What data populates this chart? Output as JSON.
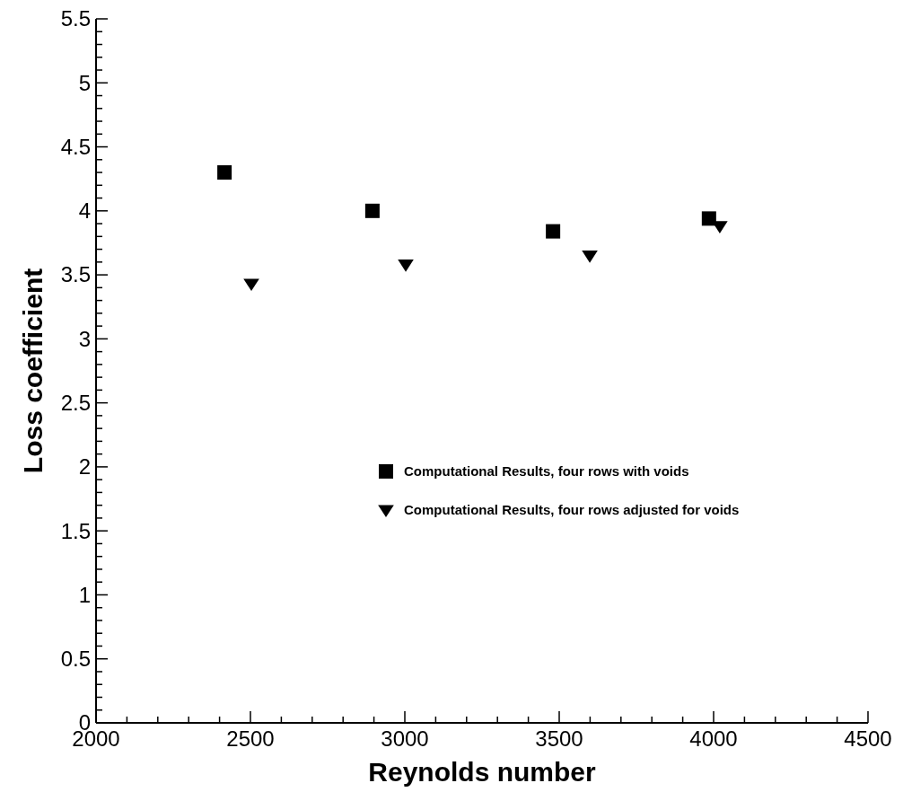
{
  "chart_data": {
    "type": "scatter",
    "xlabel": "Reynolds number",
    "ylabel": "Loss coefficient",
    "xlim": [
      2000,
      4500
    ],
    "ylim": [
      0,
      5.5
    ],
    "xticks": [
      2000,
      {
        "value": 2100,
        "label": null
      },
      {
        "value": 2200,
        "label": null
      },
      {
        "value": 2300,
        "label": null
      },
      {
        "value": 2400,
        "label": null
      },
      2500,
      {
        "value": 2600,
        "label": null
      },
      {
        "value": 2700,
        "label": null
      },
      {
        "value": 2800,
        "label": null
      },
      {
        "value": 2900,
        "label": null
      },
      3000,
      {
        "value": 3100,
        "label": null
      },
      {
        "value": 3200,
        "label": null
      },
      {
        "value": 3300,
        "label": null
      },
      {
        "value": 3400,
        "label": null
      },
      3500,
      {
        "value": 3600,
        "label": null
      },
      {
        "value": 3700,
        "label": null
      },
      {
        "value": 3800,
        "label": null
      },
      {
        "value": 3900,
        "label": null
      },
      4000,
      {
        "value": 4100,
        "label": null
      },
      {
        "value": 4200,
        "label": null
      },
      {
        "value": 4300,
        "label": null
      },
      {
        "value": 4400,
        "label": null
      },
      4500
    ],
    "yticks": [
      0,
      {
        "value": 0.1,
        "label": null
      },
      {
        "value": 0.2,
        "label": null
      },
      {
        "value": 0.3,
        "label": null
      },
      {
        "value": 0.4,
        "label": null
      },
      0.5,
      {
        "value": 0.6,
        "label": null
      },
      {
        "value": 0.7,
        "label": null
      },
      {
        "value": 0.8,
        "label": null
      },
      {
        "value": 0.9,
        "label": null
      },
      1,
      {
        "value": 1.1,
        "label": null
      },
      {
        "value": 1.2,
        "label": null
      },
      {
        "value": 1.3,
        "label": null
      },
      {
        "value": 1.4,
        "label": null
      },
      1.5,
      {
        "value": 1.6,
        "label": null
      },
      {
        "value": 1.7,
        "label": null
      },
      {
        "value": 1.8,
        "label": null
      },
      {
        "value": 1.9,
        "label": null
      },
      2,
      {
        "value": 2.1,
        "label": null
      },
      {
        "value": 2.2,
        "label": null
      },
      {
        "value": 2.3,
        "label": null
      },
      {
        "value": 2.4,
        "label": null
      },
      2.5,
      {
        "value": 2.6,
        "label": null
      },
      {
        "value": 2.7,
        "label": null
      },
      {
        "value": 2.8,
        "label": null
      },
      {
        "value": 2.9,
        "label": null
      },
      3,
      {
        "value": 3.1,
        "label": null
      },
      {
        "value": 3.2,
        "label": null
      },
      {
        "value": 3.3,
        "label": null
      },
      {
        "value": 3.4,
        "label": null
      },
      3.5,
      {
        "value": 3.6,
        "label": null
      },
      {
        "value": 3.7,
        "label": null
      },
      {
        "value": 3.8,
        "label": null
      },
      {
        "value": 3.9,
        "label": null
      },
      4,
      {
        "value": 4.1,
        "label": null
      },
      {
        "value": 4.2,
        "label": null
      },
      {
        "value": 4.3,
        "label": null
      },
      {
        "value": 4.4,
        "label": null
      },
      4.5,
      {
        "value": 4.6,
        "label": null
      },
      {
        "value": 4.7,
        "label": null
      },
      {
        "value": 4.8,
        "label": null
      },
      {
        "value": 4.9,
        "label": null
      },
      5,
      {
        "value": 5.1,
        "label": null
      },
      {
        "value": 5.2,
        "label": null
      },
      {
        "value": 5.3,
        "label": null
      },
      {
        "value": 5.4,
        "label": null
      },
      5.5
    ],
    "legend": "right",
    "grid": false,
    "series": [
      {
        "name": "Computational Results, four rows with voids",
        "color": "#000000",
        "marker": "square",
        "x": [
          2416,
          2895,
          3480,
          3985
        ],
        "values": [
          4.3,
          4.0,
          3.84,
          3.94
        ]
      },
      {
        "name": "Computational Results, four rows adjusted for voids",
        "color": "#000000",
        "marker": "triangle-down",
        "x": [
          2503,
          3003,
          3599,
          4020
        ],
        "values": [
          3.43,
          3.58,
          3.65,
          3.88
        ]
      }
    ]
  }
}
